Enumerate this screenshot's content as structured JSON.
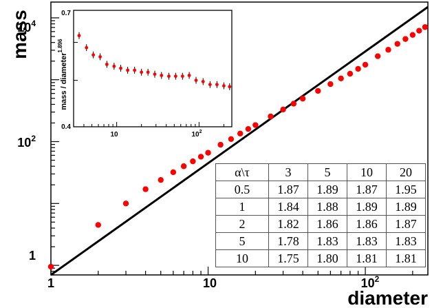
{
  "chart_data": [
    {
      "type": "scatter",
      "scale": "log-log",
      "xlabel": "diameter",
      "ylabel": "mass",
      "xlim": [
        1,
        250
      ],
      "ylim": [
        0.7,
        18000
      ],
      "x_tick_labels": [
        "1",
        "10",
        "10^2"
      ],
      "y_tick_labels": [
        "1",
        "10^2",
        "10^4"
      ],
      "series": [
        {
          "marker": "red-circle",
          "x": [
            1,
            2,
            3,
            4,
            5,
            6,
            7,
            8,
            9,
            10,
            12,
            14,
            16,
            18,
            20,
            25,
            30,
            35,
            40,
            50,
            60,
            70,
            80,
            90,
            100,
            120,
            140,
            160,
            180,
            200,
            220,
            240
          ],
          "y": [
            0.95,
            4.5,
            10,
            17,
            24,
            32,
            40,
            48,
            57,
            66,
            89,
            110,
            135,
            160,
            185,
            255,
            330,
            410,
            495,
            660,
            850,
            1050,
            1250,
            1500,
            1750,
            2400,
            3050,
            3800,
            4550,
            5300,
            6200,
            7100
          ]
        }
      ],
      "fit_line": {
        "x": [
          1,
          250
        ],
        "y": [
          0.7,
          15000
        ]
      }
    },
    {
      "type": "scatter",
      "scale": "log-log",
      "ylabel": "mass / diameter",
      "ylabel_exponent": "1.896",
      "xlim": [
        3,
        250
      ],
      "ylim": [
        0.4,
        0.7
      ],
      "x_tick_labels": [
        "10",
        "10^2"
      ],
      "y_tick_labels": [
        "0.4",
        "0.7"
      ],
      "series": [
        {
          "marker": "red-circle-with-error",
          "x": [
            3.5,
            4.3,
            5.2,
            6.3,
            7.6,
            9.3,
            11.2,
            13.6,
            16.5,
            20,
            24,
            29,
            35,
            43,
            52,
            63,
            76,
            92,
            112,
            136,
            165,
            200,
            235
          ],
          "y": [
            0.62,
            0.585,
            0.565,
            0.56,
            0.54,
            0.535,
            0.53,
            0.525,
            0.525,
            0.52,
            0.52,
            0.515,
            0.512,
            0.51,
            0.51,
            0.51,
            0.512,
            0.5,
            0.497,
            0.49,
            0.49,
            0.487,
            0.485
          ]
        }
      ]
    }
  ],
  "table": {
    "corner": "α\\τ",
    "columns": [
      "3",
      "5",
      "10",
      "20"
    ],
    "rows": [
      {
        "alpha": "0.5",
        "values": [
          "1.87",
          "1.89",
          "1.87",
          "1.95"
        ]
      },
      {
        "alpha": "1",
        "values": [
          "1.84",
          "1.88",
          "1.89",
          "1.89"
        ]
      },
      {
        "alpha": "2",
        "values": [
          "1.82",
          "1.86",
          "1.86",
          "1.87"
        ]
      },
      {
        "alpha": "5",
        "values": [
          "1.78",
          "1.83",
          "1.83",
          "1.83"
        ]
      },
      {
        "alpha": "10",
        "values": [
          "1.75",
          "1.80",
          "1.81",
          "1.81"
        ]
      }
    ]
  },
  "colors": {
    "points": "#ff0000",
    "line": "#000000",
    "frame": "#000000"
  }
}
